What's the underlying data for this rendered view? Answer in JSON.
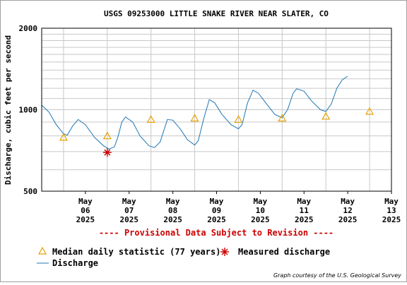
{
  "chart_data": {
    "type": "line",
    "title": "USGS 09253000 LITTLE SNAKE RIVER NEAR SLATER, CO",
    "ylabel": "Discharge, cubic feet per second",
    "xlabel": "",
    "y_scale": "log",
    "ylim": [
      500,
      2000
    ],
    "y_tick_labels": [
      "2000",
      "1000",
      "500"
    ],
    "y_ticks": [
      2000,
      1000,
      500
    ],
    "y_gridlines": [
      600,
      700,
      800,
      900,
      1100,
      1200,
      1300,
      1400,
      1500,
      1600,
      1700,
      1800,
      1900
    ],
    "x_tick_labels": [
      {
        "month": "May",
        "day": "06",
        "year": "2025"
      },
      {
        "month": "May",
        "day": "07",
        "year": "2025"
      },
      {
        "month": "May",
        "day": "08",
        "year": "2025"
      },
      {
        "month": "May",
        "day": "09",
        "year": "2025"
      },
      {
        "month": "May",
        "day": "10",
        "year": "2025"
      },
      {
        "month": "May",
        "day": "11",
        "year": "2025"
      },
      {
        "month": "May",
        "day": "12",
        "year": "2025"
      },
      {
        "month": "May",
        "day": "13",
        "year": "2025"
      }
    ],
    "xlim": [
      "2025-05-05 12:00",
      "2025-05-13 12:00"
    ],
    "grid": true,
    "series": [
      {
        "name": "Discharge",
        "color": "#1f77b4",
        "points": [
          [
            "2025-05-05 12:00",
            1040
          ],
          [
            "2025-05-05 16:00",
            980
          ],
          [
            "2025-05-05 20:00",
            880
          ],
          [
            "2025-05-06 00:00",
            815
          ],
          [
            "2025-05-06 02:00",
            805
          ],
          [
            "2025-05-06 05:00",
            870
          ],
          [
            "2025-05-06 08:00",
            920
          ],
          [
            "2025-05-06 12:00",
            880
          ],
          [
            "2025-05-06 17:00",
            790
          ],
          [
            "2025-05-06 22:00",
            735
          ],
          [
            "2025-05-07 01:00",
            715
          ],
          [
            "2025-05-07 04:00",
            730
          ],
          [
            "2025-05-07 06:00",
            800
          ],
          [
            "2025-05-07 08:00",
            900
          ],
          [
            "2025-05-07 10:00",
            940
          ],
          [
            "2025-05-07 14:00",
            900
          ],
          [
            "2025-05-07 18:00",
            800
          ],
          [
            "2025-05-07 23:00",
            735
          ],
          [
            "2025-05-08 02:00",
            725
          ],
          [
            "2025-05-08 05:00",
            760
          ],
          [
            "2025-05-08 09:00",
            920
          ],
          [
            "2025-05-08 12:00",
            915
          ],
          [
            "2025-05-08 16:00",
            850
          ],
          [
            "2025-05-08 20:00",
            775
          ],
          [
            "2025-05-09 00:00",
            740
          ],
          [
            "2025-05-09 02:00",
            770
          ],
          [
            "2025-05-09 05:00",
            930
          ],
          [
            "2025-05-09 08:00",
            1090
          ],
          [
            "2025-05-09 11:00",
            1060
          ],
          [
            "2025-05-09 15:00",
            960
          ],
          [
            "2025-05-09 20:00",
            880
          ],
          [
            "2025-05-10 00:00",
            850
          ],
          [
            "2025-05-10 02:00",
            880
          ],
          [
            "2025-05-10 05:00",
            1060
          ],
          [
            "2025-05-10 08:00",
            1180
          ],
          [
            "2025-05-10 11:00",
            1150
          ],
          [
            "2025-05-10 15:00",
            1060
          ],
          [
            "2025-05-10 20:00",
            960
          ],
          [
            "2025-05-11 00:00",
            935
          ],
          [
            "2025-05-11 03:00",
            1000
          ],
          [
            "2025-05-11 06:00",
            1150
          ],
          [
            "2025-05-11 08:00",
            1195
          ],
          [
            "2025-05-11 12:00",
            1170
          ],
          [
            "2025-05-11 16:00",
            1080
          ],
          [
            "2025-05-11 21:00",
            1000
          ],
          [
            "2025-05-12 00:00",
            985
          ],
          [
            "2025-05-12 03:00",
            1050
          ],
          [
            "2025-05-12 06:00",
            1200
          ],
          [
            "2025-05-12 09:00",
            1290
          ],
          [
            "2025-05-12 12:00",
            1330
          ]
        ]
      }
    ],
    "median_daily_statistic": {
      "name": "Median daily statistic (77 years)",
      "color": "#e8a000",
      "points": [
        [
          "2025-05-06 00:00",
          790
        ],
        [
          "2025-05-07 00:00",
          800
        ],
        [
          "2025-05-08 00:00",
          920
        ],
        [
          "2025-05-09 00:00",
          930
        ],
        [
          "2025-05-10 00:00",
          920
        ],
        [
          "2025-05-11 00:00",
          930
        ],
        [
          "2025-05-12 00:00",
          945
        ],
        [
          "2025-05-13 00:00",
          985
        ]
      ]
    },
    "measured_discharge": {
      "name": "Measured discharge",
      "color": "#cc0000",
      "points": [
        [
          "2025-05-07 00:00",
          695
        ]
      ]
    },
    "provisional_note": "---- Provisional Data Subject to Revision ----",
    "credit": "Graph courtesy of the U.S. Geological Survey"
  }
}
